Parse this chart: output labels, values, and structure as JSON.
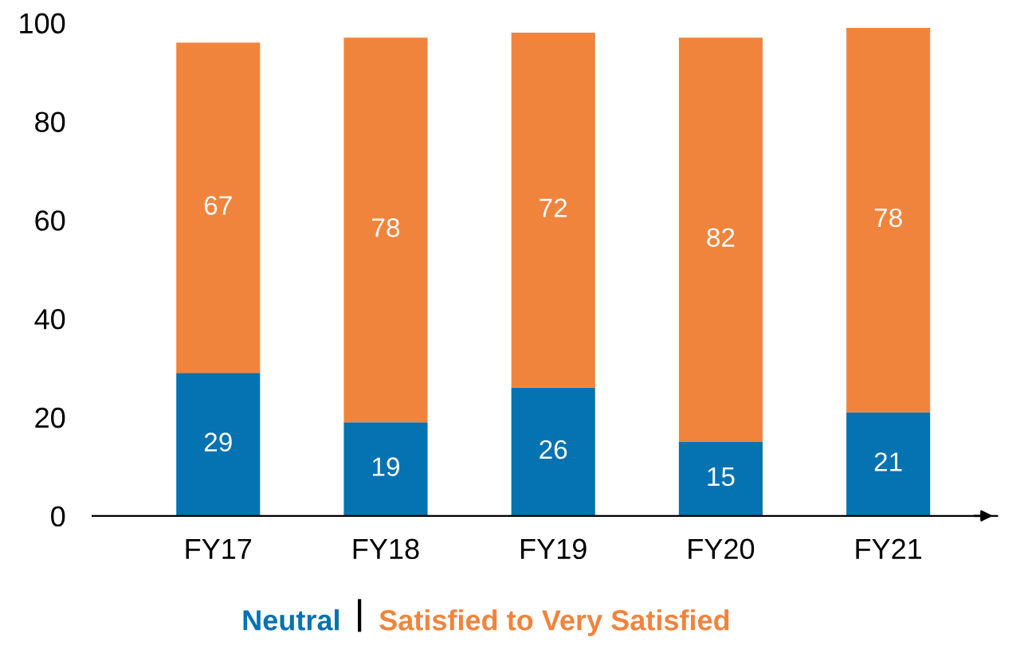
{
  "chart_data": {
    "type": "bar",
    "stacked": true,
    "categories": [
      "FY17",
      "FY18",
      "FY19",
      "FY20",
      "FY21"
    ],
    "series": [
      {
        "name": "Neutral",
        "color": "#0572b1",
        "values": [
          29,
          19,
          26,
          15,
          21
        ]
      },
      {
        "name": "Satisfied to Very Satisfied",
        "color": "#f0843d",
        "values": [
          67,
          78,
          72,
          82,
          78
        ]
      }
    ],
    "ylim": [
      0,
      100
    ],
    "yticks": [
      0,
      20,
      40,
      60,
      80,
      100
    ],
    "grid": false,
    "legend": "bottom",
    "data_labels": true
  }
}
